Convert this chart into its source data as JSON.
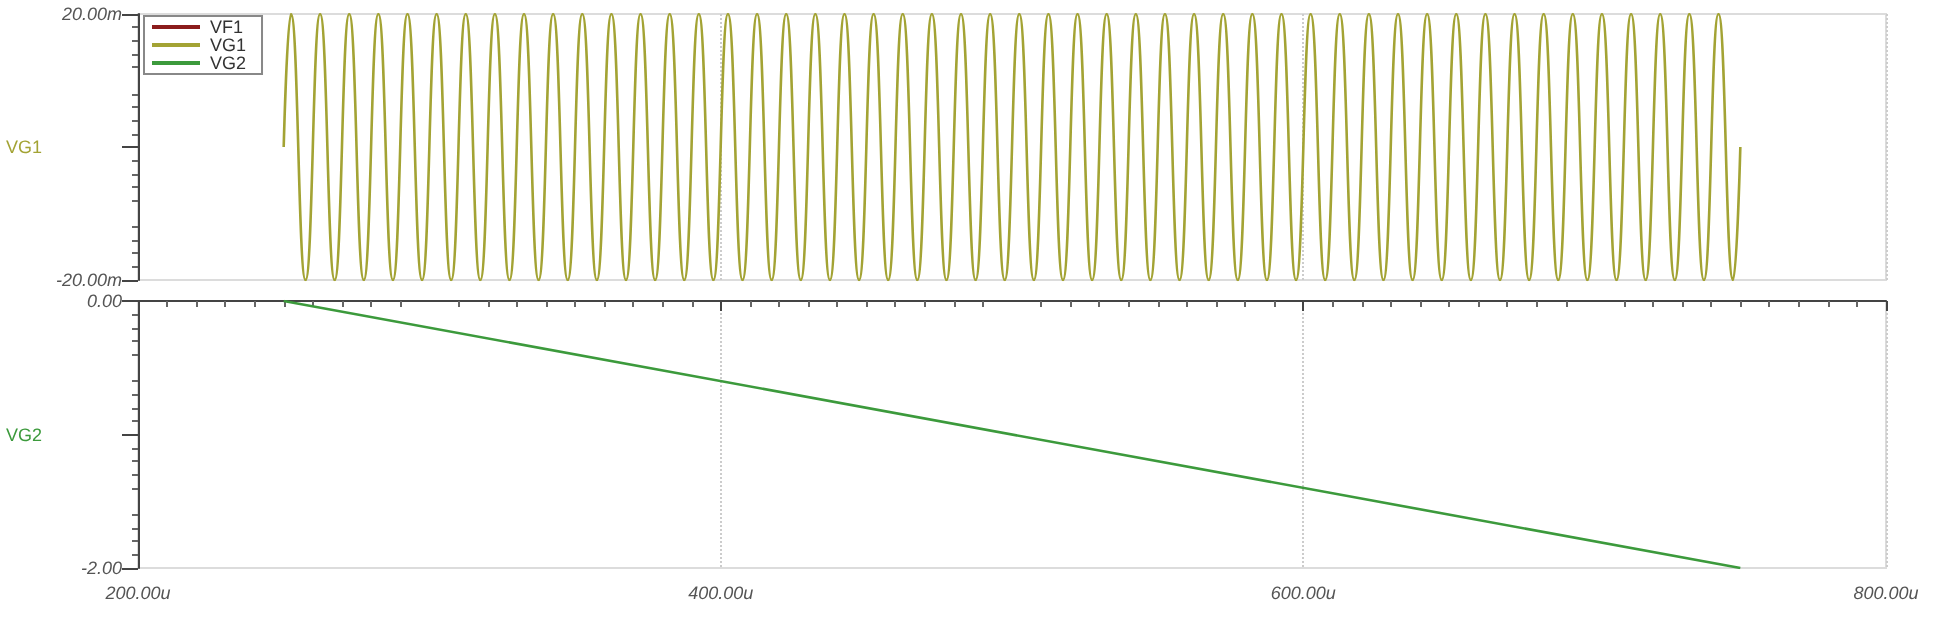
{
  "chart_data": [
    {
      "type": "line",
      "ylabel": "VG1",
      "legend": "top left",
      "grid": "x",
      "tick_labels": "y",
      "marker": "none",
      "line_style": "solid",
      "xlim": [
        200,
        800
      ],
      "xticks": [
        {
          "value": 200,
          "label": null
        },
        {
          "value": 400,
          "label": null
        },
        {
          "value": 600,
          "label": null
        },
        {
          "value": 800,
          "label": null
        }
      ],
      "ylim": [
        -20,
        20
      ],
      "yticks": [
        {
          "value": -20,
          "label": "-20.00m"
        },
        {
          "value": 0,
          "label": null
        },
        {
          "value": 20,
          "label": "20.00m"
        }
      ],
      "x": [
        250,
        252.5,
        257.5,
        262.5,
        267.5,
        272.5,
        277.5,
        282.5,
        287.5,
        292.5,
        297.5,
        302.5,
        307.5,
        312.5,
        317.5,
        322.5,
        327.5,
        332.5,
        337.5,
        342.5,
        347.5,
        352.5,
        357.5,
        362.5,
        367.5,
        372.5,
        377.5,
        382.5,
        387.5,
        392.5,
        397.5,
        402.5,
        407.5,
        412.5,
        417.5,
        422.5,
        427.5,
        432.5,
        437.5,
        442.5,
        447.5,
        452.5,
        457.5,
        462.5,
        467.5,
        472.5,
        477.5,
        482.5,
        487.5,
        492.5,
        497.5,
        502.5,
        507.5,
        512.5,
        517.5,
        522.5,
        527.5,
        532.5,
        537.5,
        542.5,
        547.5,
        552.5,
        557.5,
        562.5,
        567.5,
        572.5,
        577.5,
        582.5,
        587.5,
        592.5,
        597.5,
        602.5,
        607.5,
        612.5,
        617.5,
        622.5,
        627.5,
        632.5,
        637.5,
        642.5,
        647.5,
        652.5,
        657.5,
        662.5,
        667.5,
        672.5,
        677.5,
        682.5,
        687.5,
        692.5,
        697.5,
        702.5,
        707.5,
        712.5,
        717.5,
        722.5,
        727.5,
        732.5,
        737.5,
        742.5,
        747.5,
        750
      ],
      "series": [
        {
          "name": "VF1",
          "color": "#8b1c1c",
          "values": [
            null,
            null,
            null,
            null,
            null,
            null,
            null,
            null,
            null,
            null,
            null,
            null,
            null,
            null,
            null,
            null,
            null,
            null,
            null,
            null,
            null,
            null,
            null,
            null,
            null,
            null,
            null,
            null,
            null,
            null,
            null,
            null,
            null,
            null,
            null,
            null,
            null,
            null,
            null,
            null,
            null,
            null,
            null,
            null,
            null,
            null,
            null,
            null,
            null,
            null,
            null,
            null,
            null,
            null,
            null,
            null,
            null,
            null,
            null,
            null,
            null,
            null,
            null,
            null,
            null,
            null,
            null,
            null,
            null,
            null,
            null,
            null,
            null,
            null,
            null,
            null,
            null,
            null,
            null,
            null,
            null,
            null,
            null,
            null,
            null,
            null,
            null,
            null,
            null,
            null,
            null,
            null,
            null,
            null,
            null,
            null,
            null,
            null,
            null,
            null,
            null,
            null
          ]
        },
        {
          "name": "VG1",
          "color": "#a3a334",
          "values": [
            0,
            20,
            -20,
            20,
            -20,
            20,
            -20,
            20,
            -20,
            20,
            -20,
            20,
            -20,
            20,
            -20,
            20,
            -20,
            20,
            -20,
            20,
            -20,
            20,
            -20,
            20,
            -20,
            20,
            -20,
            20,
            -20,
            20,
            -20,
            20,
            -20,
            20,
            -20,
            20,
            -20,
            20,
            -20,
            20,
            -20,
            20,
            -20,
            20,
            -20,
            20,
            -20,
            20,
            -20,
            20,
            -20,
            20,
            -20,
            20,
            -20,
            20,
            -20,
            20,
            -20,
            20,
            -20,
            20,
            -20,
            20,
            -20,
            20,
            -20,
            20,
            -20,
            20,
            -20,
            20,
            -20,
            20,
            -20,
            20,
            -20,
            20,
            -20,
            20,
            -20,
            20,
            -20,
            20,
            -20,
            20,
            -20,
            20,
            -20,
            20,
            -20,
            20,
            -20,
            20,
            -20,
            20,
            -20,
            20,
            -20,
            20,
            -20,
            0
          ]
        },
        {
          "name": "VG2",
          "color": "#3c9a3c",
          "values": [
            null,
            null,
            null,
            null,
            null,
            null,
            null,
            null,
            null,
            null,
            null,
            null,
            null,
            null,
            null,
            null,
            null,
            null,
            null,
            null,
            null,
            null,
            null,
            null,
            null,
            null,
            null,
            null,
            null,
            null,
            null,
            null,
            null,
            null,
            null,
            null,
            null,
            null,
            null,
            null,
            null,
            null,
            null,
            null,
            null,
            null,
            null,
            null,
            null,
            null,
            null,
            null,
            null,
            null,
            null,
            null,
            null,
            null,
            null,
            null,
            null,
            null,
            null,
            null,
            null,
            null,
            null,
            null,
            null,
            null,
            null,
            null,
            null,
            null,
            null,
            null,
            null,
            null,
            null,
            null,
            null,
            null,
            null,
            null,
            null,
            null,
            null,
            null,
            null,
            null,
            null,
            null,
            null,
            null,
            null,
            null,
            null,
            null,
            null,
            null,
            null,
            null
          ]
        }
      ]
    },
    {
      "type": "line",
      "ylabel": "VG2",
      "grid": "x",
      "marker": "none",
      "line_style": "solid",
      "xlim": [
        200,
        800
      ],
      "xticks": [
        {
          "value": 200,
          "label": "200.00u"
        },
        {
          "value": 400,
          "label": "400.00u"
        },
        {
          "value": 600,
          "label": "600.00u"
        },
        {
          "value": 800,
          "label": "800.00u"
        }
      ],
      "ylim": [
        -2,
        0
      ],
      "yticks": [
        {
          "value": -2,
          "label": "-2.00"
        },
        {
          "value": -1,
          "label": null
        },
        {
          "value": 0,
          "label": "0.00"
        }
      ],
      "x": [
        250,
        750
      ],
      "series": [
        {
          "color": "#3c9a3c",
          "values": [
            0,
            -2
          ]
        }
      ]
    }
  ]
}
